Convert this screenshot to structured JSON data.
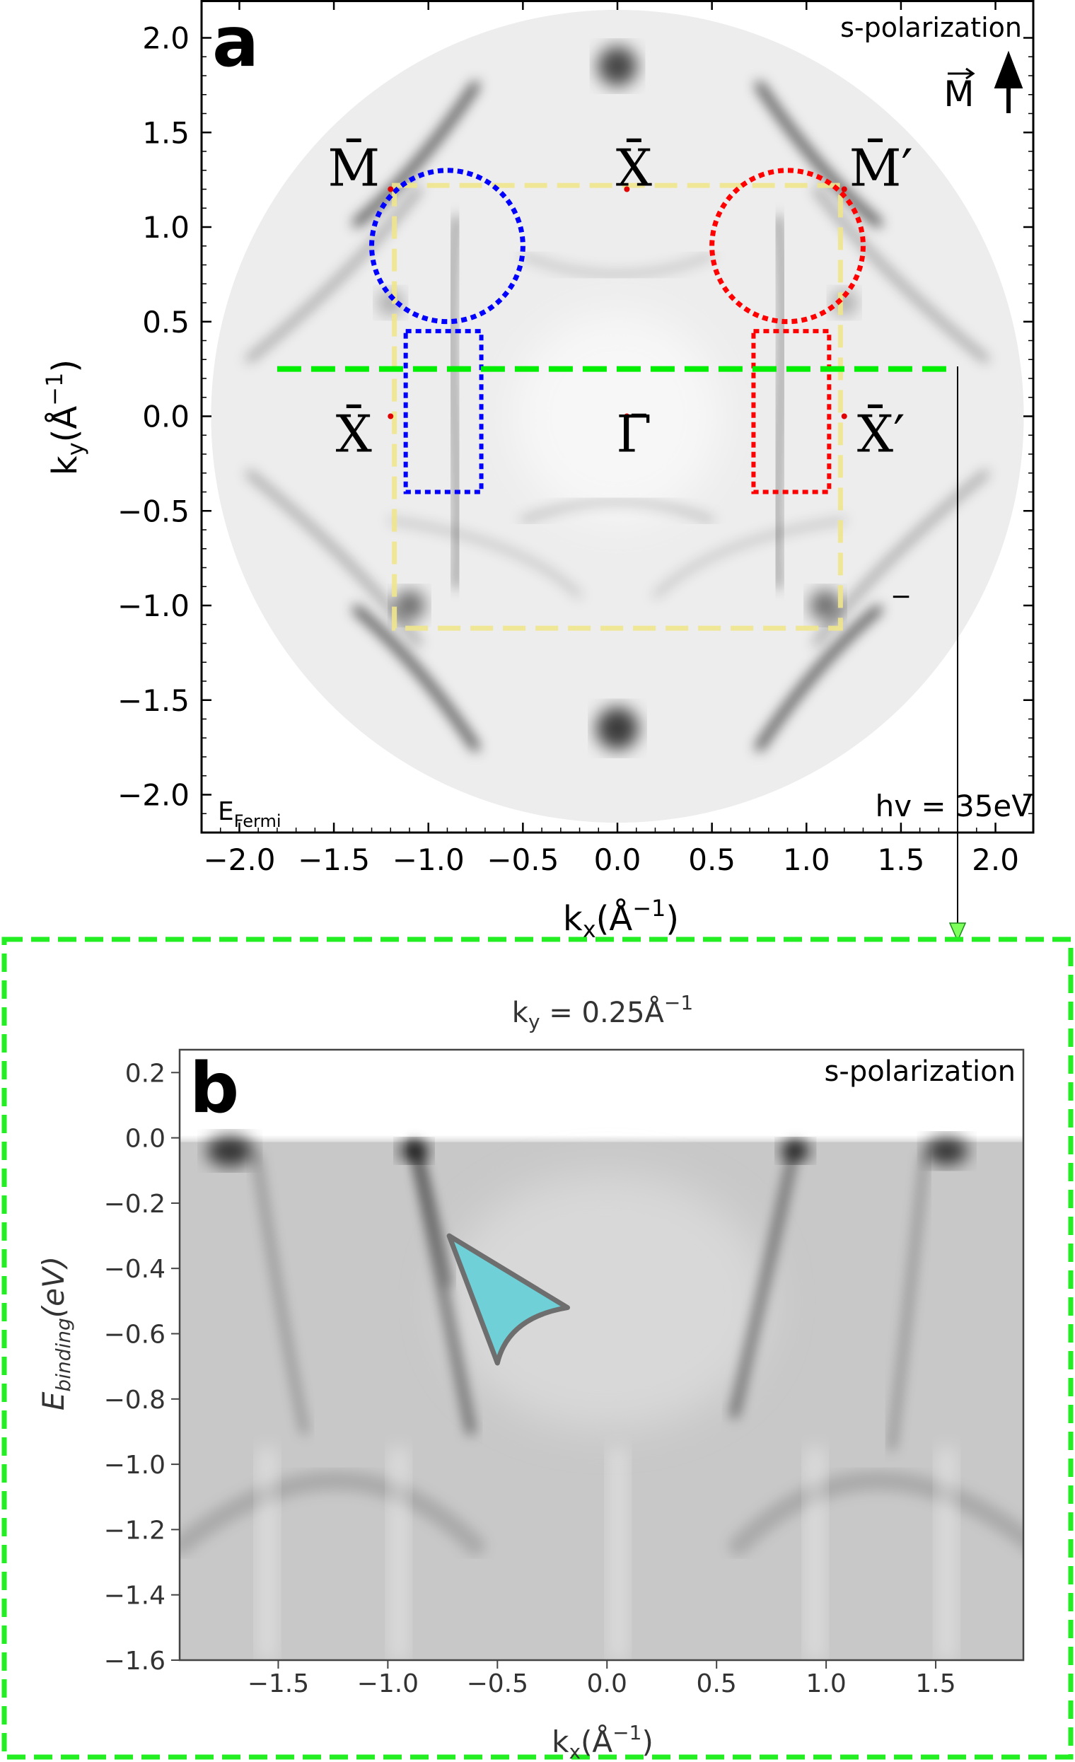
{
  "chart_data": [
    {
      "panel_letter": "a",
      "type": "heatmap",
      "xlabel_main": "k",
      "xlabel_sub": "x",
      "xlabel_units": "(Å",
      "xlabel_exp": "−1",
      "xlabel_close": ")",
      "ylabel_main": "k",
      "ylabel_sub": "y",
      "ylabel_units": "(Å",
      "ylabel_exp": "−1",
      "ylabel_close": ")",
      "xlim": [
        -2.2,
        2.2
      ],
      "ylim": [
        -2.2,
        2.2
      ],
      "xticks": [
        -2.0,
        -1.5,
        -1.0,
        -0.5,
        0.0,
        0.5,
        1.0,
        1.5,
        2.0
      ],
      "xtick_labels": [
        "−2.0",
        "−1.5",
        "−1.0",
        "−0.5",
        "0.0",
        "0.5",
        "1.0",
        "1.5",
        "2.0"
      ],
      "yticks": [
        2.0,
        1.5,
        1.0,
        0.5,
        0.0,
        -0.5,
        -1.0,
        -1.5,
        -2.0
      ],
      "ytick_labels": [
        "2.0",
        "1.5",
        "1.0",
        "0.5",
        "0.0",
        "−0.5",
        "−1.0",
        "−1.5",
        "−2.0"
      ],
      "detector_radius": 2.15,
      "polarization_label": "s-polarization",
      "magnetization_label": "M",
      "energy_label_main": "E",
      "energy_label_sub": "Fermi",
      "photon_energy_label": "hv = 35eV",
      "high_symmetry_points": [
        {
          "label": "M̄",
          "prime": "",
          "x": -1.2,
          "y": 1.2
        },
        {
          "label": "X̄",
          "prime": "",
          "x": 0.05,
          "y": 1.2
        },
        {
          "label": "M̄",
          "prime": "′",
          "x": 1.2,
          "y": 1.2
        },
        {
          "label": "X̄",
          "prime": "",
          "x": -1.2,
          "y": 0.0
        },
        {
          "label": "Γ̄",
          "prime": "",
          "x": 0.05,
          "y": 0.0
        },
        {
          "label": "X̄",
          "prime": "′",
          "x": 1.2,
          "y": 0.0
        }
      ],
      "brillouin_zone": {
        "x": [
          -1.18,
          1.18
        ],
        "y": [
          -1.12,
          1.22
        ],
        "color": "#f0e68c"
      },
      "circles": [
        {
          "cx": -0.9,
          "cy": 0.9,
          "r": 0.4,
          "color": "#0000ff"
        },
        {
          "cx": 0.9,
          "cy": 0.9,
          "r": 0.4,
          "color": "#ff0000"
        }
      ],
      "boxes": [
        {
          "x": [
            -1.12,
            -0.72
          ],
          "y": [
            -0.4,
            0.45
          ],
          "color": "#0000ff"
        },
        {
          "x": [
            0.72,
            1.12
          ],
          "y": [
            -0.4,
            0.45
          ],
          "color": "#ff0000"
        }
      ],
      "cut_line": {
        "ky": 0.25,
        "kx": [
          -1.8,
          1.75
        ],
        "color": "#00ee00"
      },
      "minus_mark": "−"
    },
    {
      "panel_letter": "b",
      "type": "heatmap",
      "title_main": "k",
      "title_sub": "y",
      "title_rest": " = 0.25Å",
      "title_exp": "−1",
      "xlabel_main": "k",
      "xlabel_sub": "x",
      "xlabel_units": "(Å",
      "xlabel_exp": "−1",
      "xlabel_close": ")",
      "ylabel_main": "E",
      "ylabel_sub": "binding",
      "ylabel_units": "(eV)",
      "xlim": [
        -1.95,
        1.9
      ],
      "ylim": [
        -1.6,
        0.27
      ],
      "xticks": [
        -1.5,
        -1.0,
        -0.5,
        0.0,
        0.5,
        1.0,
        1.5
      ],
      "xtick_labels": [
        "−1.5",
        "−1.0",
        "−0.5",
        "0.0",
        "0.5",
        "1.0",
        "1.5"
      ],
      "yticks": [
        0.2,
        0.0,
        -0.2,
        -0.4,
        -0.6,
        -0.8,
        -1.0,
        -1.2,
        -1.4,
        -1.6
      ],
      "ytick_labels": [
        "0.2",
        "0.0",
        "−0.2",
        "−0.4",
        "−0.6",
        "−0.8",
        "−1.0",
        "−1.2",
        "−1.4",
        "−1.6"
      ],
      "polarization_label": "s-polarization",
      "fermi_level": 0.0,
      "arrow_marker_color": "#6fd0d8"
    }
  ]
}
